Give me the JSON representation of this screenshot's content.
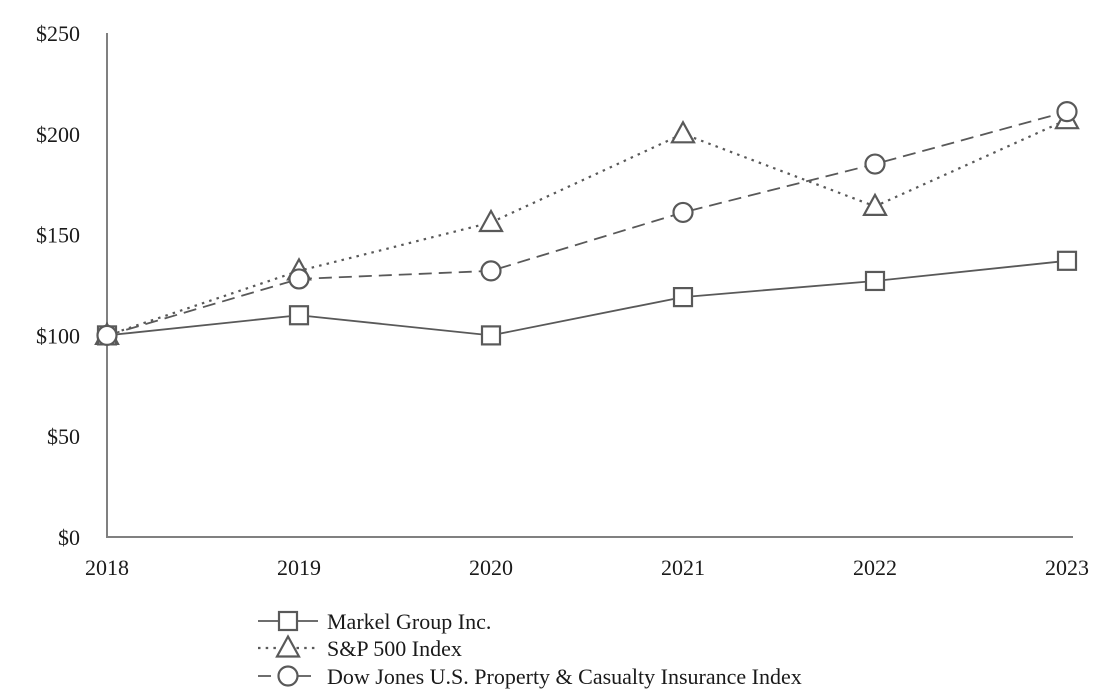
{
  "chart_data": {
    "type": "line",
    "title": "",
    "x": [
      2018,
      2019,
      2020,
      2021,
      2022,
      2023
    ],
    "x_tick_labels": [
      "2018",
      "2019",
      "2020",
      "2021",
      "2022",
      "2023"
    ],
    "y_ticks": [
      0,
      50,
      100,
      150,
      200,
      250
    ],
    "y_tick_labels": [
      "$0",
      "$50",
      "$100",
      "$150",
      "$200",
      "$250"
    ],
    "ylim": [
      0,
      250
    ],
    "grid": false,
    "legend_position": "bottom-left",
    "series": [
      {
        "name": "Markel Group Inc.",
        "marker": "square",
        "line_style": "solid",
        "values": [
          100,
          110,
          100,
          119,
          127,
          137
        ]
      },
      {
        "name": "S&P 500 Index",
        "marker": "triangle",
        "line_style": "dotted",
        "values": [
          100,
          132,
          156,
          200,
          164,
          207
        ]
      },
      {
        "name": "Dow Jones U.S. Property & Casualty Insurance Index",
        "marker": "circle",
        "line_style": "dashed",
        "values": [
          100,
          128,
          132,
          161,
          185,
          211
        ]
      }
    ],
    "colors": {
      "line": "#595959",
      "axis": "#808080",
      "text": "#1a1a1a",
      "marker_fill": "#ffffff"
    }
  }
}
